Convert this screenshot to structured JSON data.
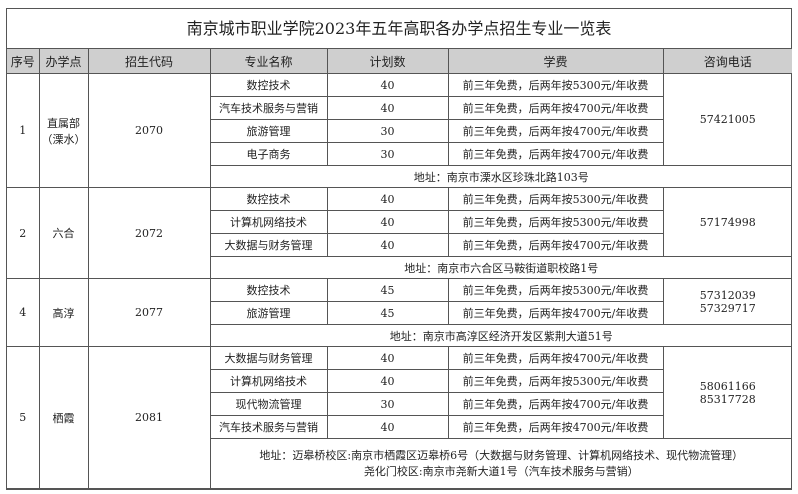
{
  "title": "南京城市职业学院2023年五年高职各办学点招生专业一览表",
  "headers": [
    "序号",
    "办学点",
    "招生代码",
    "专业名称",
    "计划数",
    "学费",
    "咨询电话"
  ],
  "groups": [
    {
      "no": "1",
      "site": "直属部\n（溧水）",
      "code": "2070",
      "phone": "57421005",
      "majors": [
        {
          "name": "数控技术",
          "plan": "40",
          "fee": "前三年免费，后两年按5300元/年收费"
        },
        {
          "name": "汽车技术服务与营销",
          "plan": "40",
          "fee": "前三年免费，后两年按4700元/年收费"
        },
        {
          "name": "旅游管理",
          "plan": "30",
          "fee": "前三年免费，后两年按4700元/年收费"
        },
        {
          "name": "电子商务",
          "plan": "30",
          "fee": "前三年免费，后两年按4700元/年收费"
        }
      ],
      "address": "地址：南京市溧水区珍珠北路103号"
    },
    {
      "no": "2",
      "site": "六合",
      "code": "2072",
      "phone": "57174998",
      "majors": [
        {
          "name": "数控技术",
          "plan": "40",
          "fee": "前三年免费，后两年按5300元/年收费"
        },
        {
          "name": "计算机网络技术",
          "plan": "40",
          "fee": "前三年免费，后两年按5300元/年收费"
        },
        {
          "name": "大数据与财务管理",
          "plan": "40",
          "fee": "前三年免费，后两年按4700元/年收费"
        }
      ],
      "address": "地址：南京市六合区马鞍街道职校路1号"
    },
    {
      "no": "4",
      "site": "高淳",
      "code": "2077",
      "phone": "57312039\n57329717",
      "majors": [
        {
          "name": "数控技术",
          "plan": "45",
          "fee": "前三年免费，后两年按5300元/年收费"
        },
        {
          "name": "旅游管理",
          "plan": "45",
          "fee": "前三年免费，后两年按4700元/年收费"
        }
      ],
      "address": "地址：南京市高淳区经济开发区紫荆大道51号"
    },
    {
      "no": "5",
      "site": "栖霞",
      "code": "2081",
      "phone": "58061166\n85317728",
      "majors": [
        {
          "name": "大数据与财务管理",
          "plan": "40",
          "fee": "前三年免费，后两年按4700元/年收费"
        },
        {
          "name": "计算机网络技术",
          "plan": "40",
          "fee": "前三年免费，后两年按5300元/年收费"
        },
        {
          "name": "现代物流管理",
          "plan": "30",
          "fee": "前三年免费，后两年按4700元/年收费"
        },
        {
          "name": "汽车技术服务与营销",
          "plan": "40",
          "fee": "前三年免费，后两年按4700元/年收费"
        }
      ],
      "address": "地址：迈皋桥校区:南京市栖霞区迈皋桥6号（大数据与财务管理、计算机网络技术、现代物流管理）\n尧化门校区:南京市尧新大道1号（汽车技术服务与营销）"
    }
  ]
}
